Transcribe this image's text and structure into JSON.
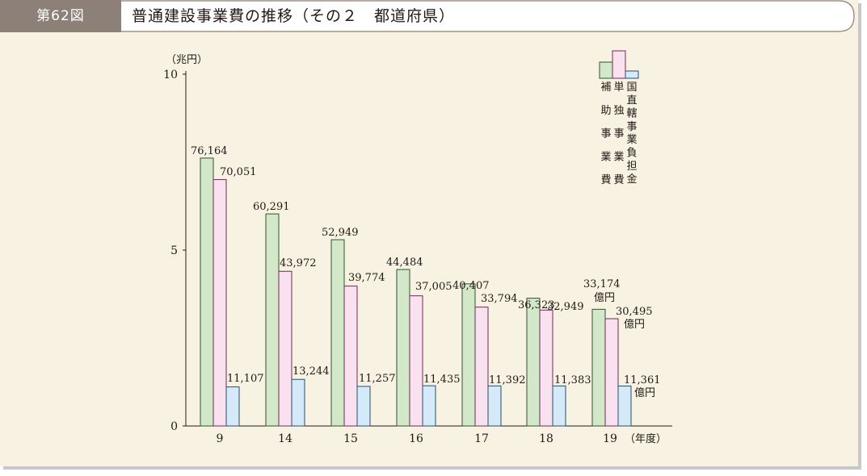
{
  "header": {
    "figure_number": "第62図",
    "title": "普通建設事業費の推移（その２　都道府県）"
  },
  "chart_data": {
    "type": "bar",
    "ylabel": "（兆円）",
    "xlabel": "（年度）",
    "ylim": [
      0,
      10
    ],
    "yticks": [
      "0",
      "5",
      "10"
    ],
    "categories": [
      "9",
      "14",
      "15",
      "16",
      "17",
      "18",
      "19"
    ],
    "legend_position": "top-right",
    "series": [
      {
        "name": "補助事業費",
        "color": "#d2e8c8",
        "edge": "#2f5233",
        "values": [
          76164,
          60291,
          52949,
          44484,
          40407,
          36323,
          33174
        ],
        "labels": [
          "76,164",
          "60,291",
          "52,949",
          "44,484",
          "40,407",
          "36,323",
          "33,174"
        ]
      },
      {
        "name": "単独事業費",
        "color": "#f9e1f0",
        "edge": "#6a2d55",
        "values": [
          70051,
          43972,
          39774,
          37005,
          33794,
          32949,
          30495
        ],
        "labels": [
          "70,051",
          "43,972",
          "39,774",
          "37,005",
          "33,794",
          "32,949",
          "30,495"
        ]
      },
      {
        "name": "国直轄事業負担金",
        "color": "#d5eaf8",
        "edge": "#2a4d6e",
        "values": [
          11107,
          13244,
          11257,
          11435,
          11392,
          11383,
          11361
        ],
        "labels": [
          "11,107",
          "13,244",
          "11,257",
          "11,435",
          "11,392",
          "11,383",
          "11,361"
        ]
      }
    ],
    "value_unit": "億円"
  }
}
